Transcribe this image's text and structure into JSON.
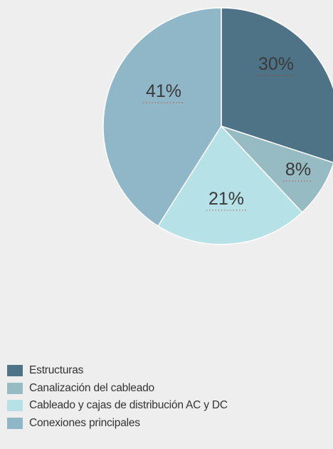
{
  "chart_data": {
    "type": "pie",
    "slices": [
      {
        "label": "Estructuras",
        "value": 30,
        "display": "30%",
        "color": "#4e7286"
      },
      {
        "label": "Canalización del cableado",
        "value": 8,
        "display": "8%",
        "color": "#96bbc3"
      },
      {
        "label": "Cableado y cajas de distribución AC y DC",
        "value": 21,
        "display": "21%",
        "color": "#b6e1e6"
      },
      {
        "label": "Conexiones principales",
        "value": 41,
        "display": "41%",
        "color": "#8fb7c7"
      }
    ],
    "legend_position": "bottom-left",
    "start_angle": "top",
    "direction": "clockwise",
    "label_underline_color": "#c0392b"
  }
}
